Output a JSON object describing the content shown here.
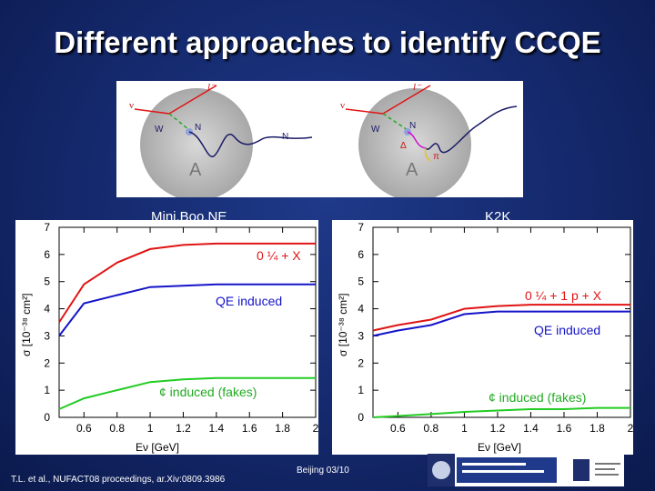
{
  "slide": {
    "title": "Different approaches to identify CCQE",
    "label_left": "Mini.Boo.NE",
    "label_right": "K2K",
    "footer_left": "T.L. et al., NUFACT08 proceedings, ar.Xiv:0809.3986",
    "footer_center": "Beijing 03/10"
  },
  "diagram": {
    "left": {
      "nu": "ν",
      "lepton": "l⁻",
      "w": "W",
      "n_vertex": "N",
      "n_out": "N",
      "nucleus": "A"
    },
    "right": {
      "nu": "ν",
      "lepton": "l⁻",
      "w": "W",
      "n_vertex": "N",
      "delta": "Δ",
      "pi": "π",
      "nucleus": "A"
    }
  },
  "colors": {
    "red": "#e01414",
    "blue": "#1414c8",
    "green": "#22cc22"
  },
  "chart_data": [
    {
      "type": "line",
      "xlabel": "Eν [GeV]",
      "ylabel": "σ [10⁻³⁸ cm²]",
      "xlim": [
        0.45,
        2.0
      ],
      "ylim": [
        0,
        7
      ],
      "xticks": [
        "0.6",
        "0.8",
        "1",
        "1.2",
        "1.4",
        "1.6",
        "1.8",
        "2"
      ],
      "yticks": [
        "0",
        "1",
        "2",
        "3",
        "4",
        "5",
        "6",
        "7"
      ],
      "annotations": [
        "0 ¼ + X",
        "QE induced",
        "¢ induced (fakes)"
      ],
      "series": [
        {
          "color": "red",
          "x": [
            0.45,
            0.6,
            0.8,
            1.0,
            1.2,
            1.4,
            1.6,
            1.8,
            2.0
          ],
          "y": [
            3.5,
            4.9,
            5.7,
            6.2,
            6.35,
            6.4,
            6.4,
            6.4,
            6.4
          ]
        },
        {
          "color": "blue",
          "x": [
            0.45,
            0.6,
            0.8,
            1.0,
            1.2,
            1.4,
            1.6,
            1.8,
            2.0
          ],
          "y": [
            3.0,
            4.2,
            4.5,
            4.8,
            4.85,
            4.9,
            4.9,
            4.9,
            4.9
          ]
        },
        {
          "color": "green",
          "x": [
            0.45,
            0.6,
            0.8,
            1.0,
            1.2,
            1.4,
            1.6,
            1.8,
            2.0
          ],
          "y": [
            0.3,
            0.7,
            1.0,
            1.3,
            1.4,
            1.45,
            1.45,
            1.45,
            1.45
          ]
        }
      ]
    },
    {
      "type": "line",
      "xlabel": "Eν [GeV]",
      "ylabel": "σ [10⁻³⁸ cm²]",
      "xlim": [
        0.45,
        2.0
      ],
      "ylim": [
        0,
        7
      ],
      "xticks": [
        "0.6",
        "0.8",
        "1",
        "1.2",
        "1.4",
        "1.6",
        "1.8",
        "2"
      ],
      "yticks": [
        "0",
        "1",
        "2",
        "3",
        "4",
        "5",
        "6",
        "7"
      ],
      "annotations": [
        "0 ¼ + 1 p + X",
        "QE induced",
        "¢ induced (fakes)"
      ],
      "series": [
        {
          "color": "red",
          "x": [
            0.45,
            0.6,
            0.8,
            1.0,
            1.2,
            1.4,
            1.6,
            1.8,
            2.0
          ],
          "y": [
            3.2,
            3.4,
            3.6,
            4.0,
            4.1,
            4.15,
            4.15,
            4.15,
            4.15
          ]
        },
        {
          "color": "blue",
          "x": [
            0.45,
            0.6,
            0.8,
            1.0,
            1.2,
            1.4,
            1.6,
            1.8,
            2.0
          ],
          "y": [
            3.0,
            3.2,
            3.4,
            3.8,
            3.9,
            3.9,
            3.9,
            3.9,
            3.9
          ]
        },
        {
          "color": "green",
          "x": [
            0.45,
            0.6,
            0.8,
            1.0,
            1.2,
            1.4,
            1.6,
            1.8,
            2.0
          ],
          "y": [
            0.0,
            0.05,
            0.12,
            0.2,
            0.25,
            0.3,
            0.3,
            0.35,
            0.35
          ]
        }
      ]
    }
  ]
}
